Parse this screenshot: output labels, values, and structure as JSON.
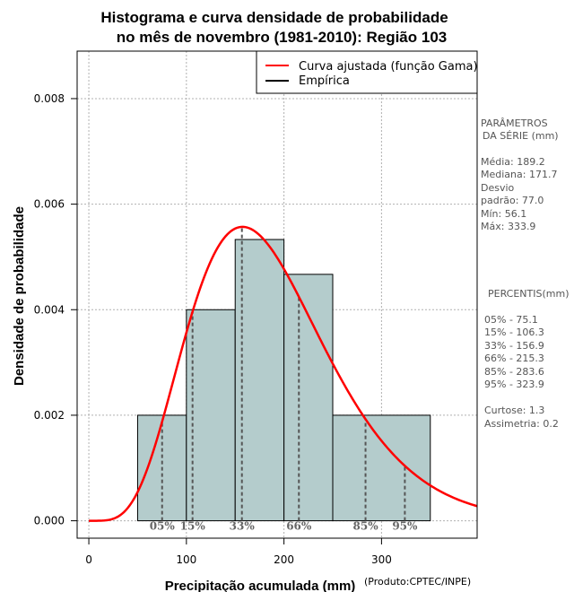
{
  "chart_data": {
    "type": "bar",
    "title_line1": "Histograma e curva densidade de probabilidade",
    "title_line2": "no mês de novembro (1981-2010): Região 103",
    "xlabel": "Precipitação acumulada (mm)",
    "ylabel": "Densidade de probabilidade",
    "credit": "(Produto:CPTEC/INPE)",
    "xlim": [
      -12,
      398
    ],
    "ylim": [
      -0.00033,
      0.0089
    ],
    "x_ticks": [
      0,
      100,
      200,
      300
    ],
    "y_ticks": [
      0.0,
      0.002,
      0.004,
      0.006,
      0.008
    ],
    "y_tick_labels": [
      "0.000",
      "0.002",
      "0.004",
      "0.006",
      "0.008"
    ],
    "grid": true,
    "bins": [
      {
        "start": 50,
        "end": 100,
        "density": 0.002
      },
      {
        "start": 100,
        "end": 150,
        "density": 0.004
      },
      {
        "start": 150,
        "end": 200,
        "density": 0.00533
      },
      {
        "start": 200,
        "end": 250,
        "density": 0.00467
      },
      {
        "start": 250,
        "end": 350,
        "density": 0.002
      }
    ],
    "gamma_fit": {
      "shape": 6.0,
      "scale": 31.5
    },
    "percentiles": [
      {
        "label": "05%",
        "value": 75.1
      },
      {
        "label": "15%",
        "value": 106.3
      },
      {
        "label": "33%",
        "value": 156.9
      },
      {
        "label": "66%",
        "value": 215.3
      },
      {
        "label": "85%",
        "value": 283.6
      },
      {
        "label": "95%",
        "value": 323.9
      }
    ],
    "legend": {
      "placement": "top-right",
      "entries": [
        {
          "name": "Curva ajustada (função Gama)",
          "color": "#ff0000"
        },
        {
          "name": "Empírica",
          "color": "#000000"
        }
      ]
    },
    "colors": {
      "bar_fill": "#b4cccc",
      "curve": "#ff0000",
      "grid": "#b0b0b0",
      "percentile_line": "#555555"
    }
  },
  "side_panel": {
    "params_title_1": "PARÂMETROS",
    "params_title_2": "DA SÉRIE (mm)",
    "media": "Média:  189.2",
    "mediana": "Mediana:  171.7",
    "desvio_1": "Desvio",
    "desvio_2": "padrão:  77.0",
    "min": "Mín:  56.1",
    "max": "Máx:  333.9",
    "percentis_title": "PERCENTIS(mm)",
    "p05": "05% -   75.1",
    "p15": "15% -   106.3",
    "p33": "33% -   156.9",
    "p66": "66% -   215.3",
    "p85": "85% -   283.6",
    "p95": "95% -   323.9",
    "curtose": "Curtose:  1.3",
    "assimetria": "Assimetria:  0.2"
  }
}
